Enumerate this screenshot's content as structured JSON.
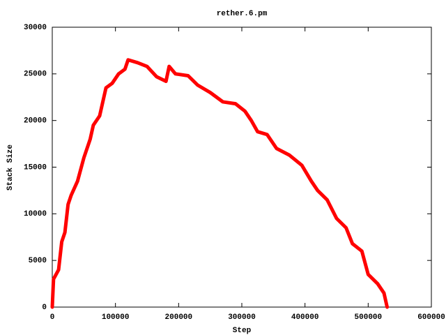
{
  "chart_data": {
    "type": "line",
    "title": "rether.6.pm",
    "x_label": "Step",
    "y_label": "Stack Size",
    "x": [
      0,
      2000,
      10000,
      15000,
      20000,
      25000,
      30000,
      40000,
      50000,
      60000,
      65000,
      75000,
      80000,
      85000,
      95000,
      105000,
      115000,
      120000,
      135000,
      150000,
      165000,
      180000,
      185000,
      195000,
      215000,
      230000,
      250000,
      270000,
      290000,
      305000,
      315000,
      325000,
      340000,
      355000,
      375000,
      395000,
      410000,
      420000,
      435000,
      450000,
      465000,
      475000,
      490000,
      500000,
      515000,
      525000,
      530000
    ],
    "values": [
      0,
      3000,
      4000,
      7000,
      8000,
      11000,
      12000,
      13500,
      16000,
      18000,
      19500,
      20500,
      22000,
      23500,
      24000,
      25000,
      25500,
      26500,
      26200,
      25800,
      24700,
      24200,
      25800,
      25000,
      24800,
      23800,
      23000,
      22000,
      21800,
      21000,
      20000,
      18800,
      18500,
      17000,
      16300,
      15200,
      13500,
      12500,
      11500,
      9500,
      8500,
      6800,
      6000,
      3500,
      2500,
      1500,
      0
    ],
    "color": "#ff0000",
    "xlim": [
      0,
      600000
    ],
    "xticks": [
      0,
      100000,
      200000,
      300000,
      400000,
      500000,
      600000
    ],
    "ylim": [
      0,
      30000
    ],
    "yticks": [
      0,
      5000,
      10000,
      15000,
      20000,
      25000,
      30000
    ]
  }
}
